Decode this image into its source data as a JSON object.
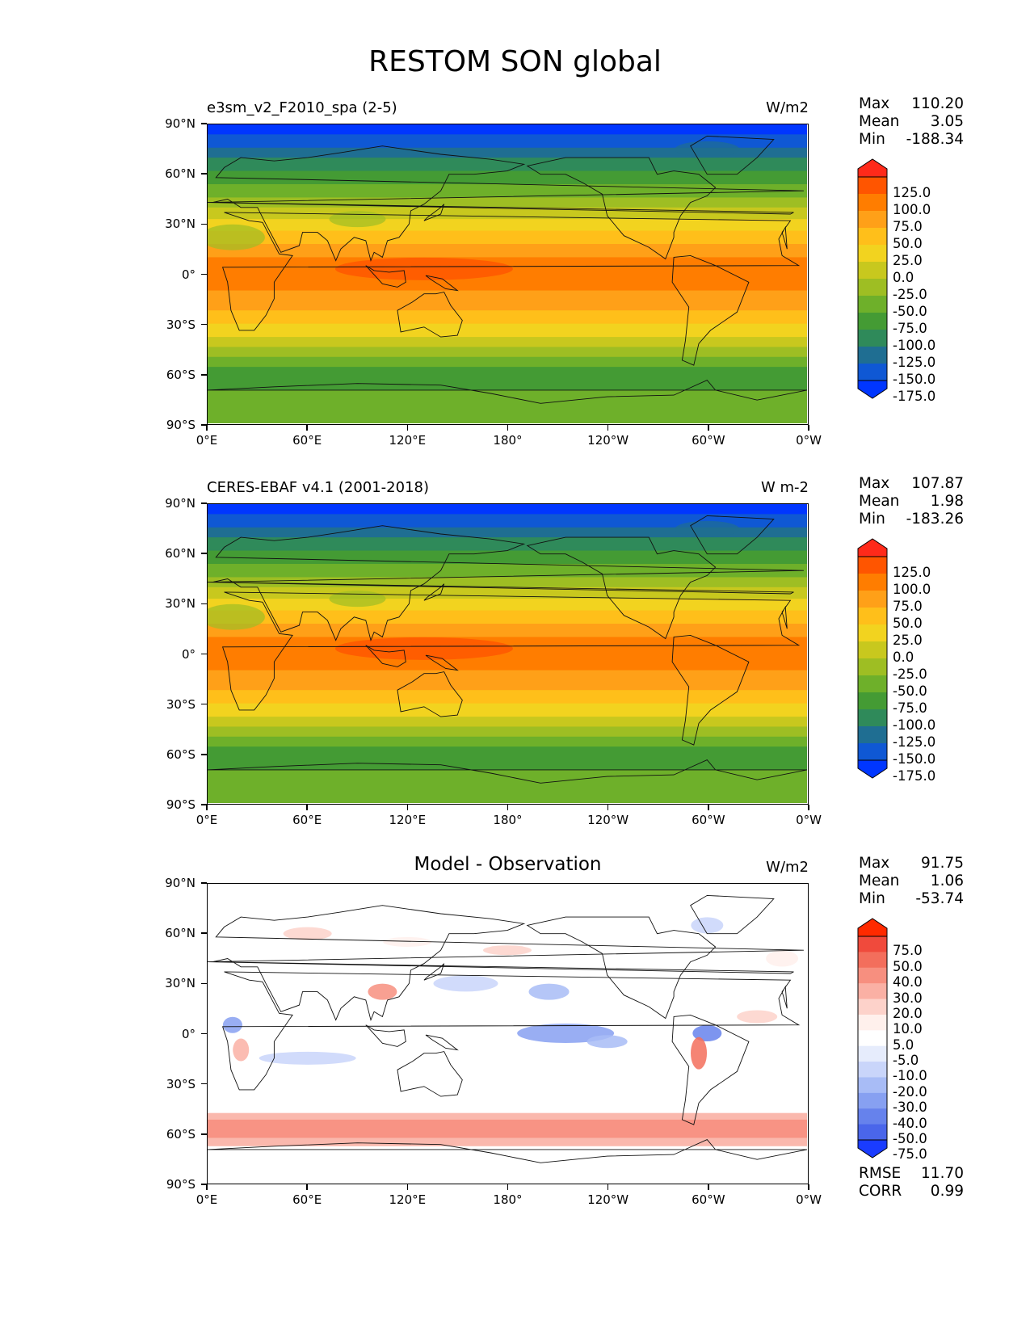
{
  "title": "RESTOM SON global",
  "yticks": [
    "90°N",
    "60°N",
    "30°N",
    "0°",
    "30°S",
    "60°S",
    "90°S"
  ],
  "xticks": [
    "0°E",
    "60°E",
    "120°E",
    "180°",
    "120°W",
    "60°W",
    "0°W"
  ],
  "panels": [
    {
      "title": "e3sm_v2_F2010_spa (2-5)",
      "units": "W/m2",
      "stats": {
        "max_label": "Max",
        "max": "110.20",
        "mean_label": "Mean",
        "mean": "3.05",
        "min_label": "Min",
        "min": "-188.34"
      },
      "colorbar_labels": [
        "125.0",
        "100.0",
        "75.0",
        "50.0",
        "25.0",
        "0.0",
        "-25.0",
        "-50.0",
        "-75.0",
        "-100.0",
        "-125.0",
        "-150.0",
        "-175.0"
      ]
    },
    {
      "title": "CERES-EBAF v4.1 (2001-2018)",
      "units": "W m-2",
      "stats": {
        "max_label": "Max",
        "max": "107.87",
        "mean_label": "Mean",
        "mean": "1.98",
        "min_label": "Min",
        "min": "-183.26"
      },
      "colorbar_labels": [
        "125.0",
        "100.0",
        "75.0",
        "50.0",
        "25.0",
        "0.0",
        "-25.0",
        "-50.0",
        "-75.0",
        "-100.0",
        "-125.0",
        "-150.0",
        "-175.0"
      ]
    },
    {
      "title": "Model - Observation",
      "units": "W/m2",
      "stats": {
        "max_label": "Max",
        "max": "91.75",
        "mean_label": "Mean",
        "mean": "1.06",
        "min_label": "Min",
        "min": "-53.74"
      },
      "colorbar_labels": [
        "75.0",
        "50.0",
        "40.0",
        "30.0",
        "20.0",
        "10.0",
        "5.0",
        "-5.0",
        "-10.0",
        "-20.0",
        "-30.0",
        "-40.0",
        "-50.0",
        "-75.0"
      ],
      "rmse_label": "RMSE",
      "rmse": "11.70",
      "corr_label": "CORR",
      "corr": "0.99"
    }
  ],
  "colors": {
    "abs_scale": [
      "#ff2a1a",
      "#ff5500",
      "#ff7d00",
      "#ffa018",
      "#ffbf1a",
      "#f2d31f",
      "#c8c81e",
      "#9ebe23",
      "#6eb02a",
      "#449b34",
      "#2f8a5a",
      "#1f6e92",
      "#0f58d4",
      "#0036ff"
    ],
    "diff_scale": [
      "#ff2a00",
      "#f04a3c",
      "#f36e5c",
      "#f78f7f",
      "#fab0a4",
      "#fdd2ca",
      "#fff0ec",
      "#ffffff",
      "#e6ecfc",
      "#c9d5fa",
      "#a8bcf6",
      "#87a0f1",
      "#6682ec",
      "#4a66ea",
      "#1a3cff"
    ]
  }
}
